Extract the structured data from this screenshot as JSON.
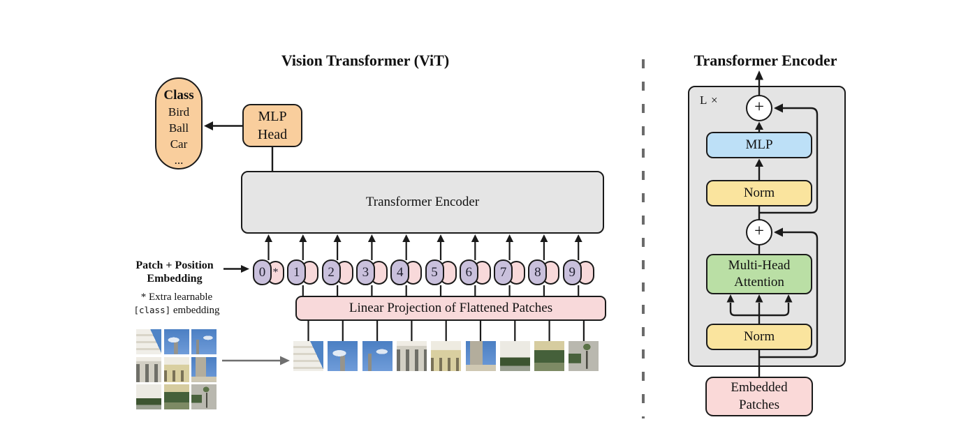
{
  "left_figure": {
    "title": "Vision Transformer (ViT)",
    "class_pill": {
      "heading": "Class",
      "items": [
        "Bird",
        "Ball",
        "Car",
        "..."
      ]
    },
    "mlp_head": {
      "line1": "MLP",
      "line2": "Head"
    },
    "encoder_label": "Transformer Encoder",
    "projection_label": "Linear Projection of Flattened Patches",
    "embedding_label": {
      "line1": "Patch + Position",
      "line2": "Embedding"
    },
    "footnote": {
      "line1": "* Extra learnable",
      "code": "[class]",
      "line2": " embedding"
    },
    "tokens": [
      "0",
      "1",
      "2",
      "3",
      "4",
      "5",
      "6",
      "7",
      "8",
      "9"
    ],
    "class_token_symbol": "*"
  },
  "right_figure": {
    "title": "Transformer Encoder",
    "repeat_label": "L ×",
    "plus_symbol": "+",
    "mlp_label": "MLP",
    "norm_top_label": "Norm",
    "attention": {
      "line1": "Multi-Head",
      "line2": "Attention"
    },
    "norm_bottom_label": "Norm",
    "embedded": {
      "line1": "Embedded",
      "line2": "Patches"
    }
  },
  "colors": {
    "orange": "#F9CE9D",
    "token_purple": "#C9C0DC",
    "token_pink": "#F8D9DA",
    "encoder_gray": "#E5E5E5",
    "panel_gray": "#E4E4E4",
    "mlp_blue": "#BDE0F7",
    "norm_yellow": "#FAE49E",
    "attention_green": "#BADFA5",
    "patches_pink": "#FAD9D8",
    "line_dark": "#1a1a1a",
    "divider_gray": "#6b6b6b"
  }
}
